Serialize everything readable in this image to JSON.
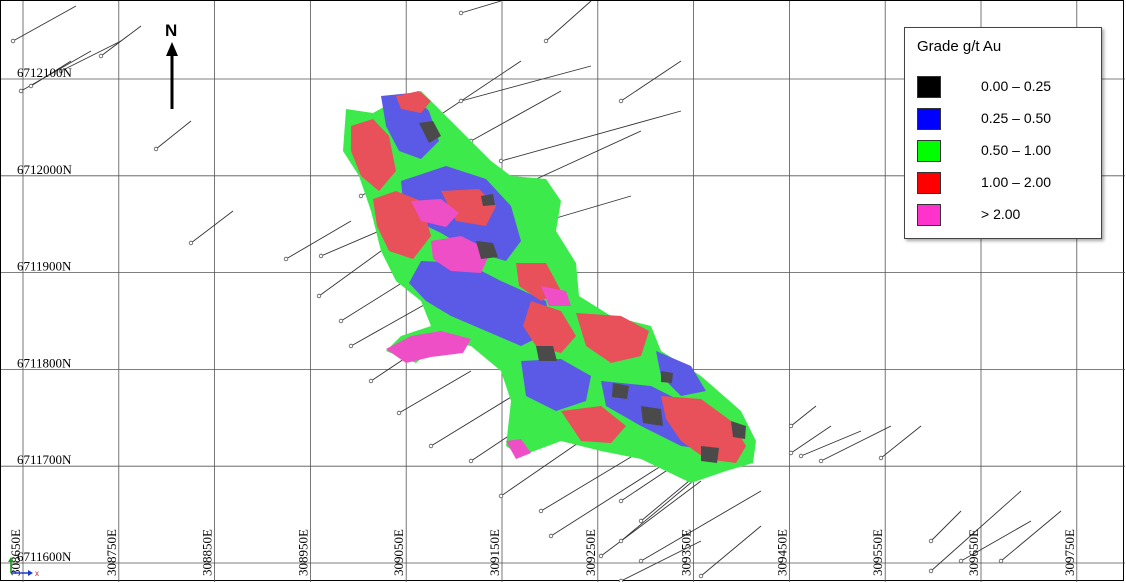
{
  "map": {
    "north_label": "N",
    "northing_labels": [
      "6712100N",
      "6712000N",
      "6711900N",
      "6711800N",
      "6711700N",
      "6711600N"
    ],
    "easting_labels": [
      "308650E",
      "308750E",
      "308850E",
      "308950E",
      "309050E",
      "309150E",
      "309250E",
      "309350E",
      "309450E",
      "309550E",
      "309650E",
      "309750E"
    ]
  },
  "legend": {
    "title": "Grade g/t Au",
    "items": [
      {
        "label": "0.00 – 0.25",
        "color": "#000000"
      },
      {
        "label": "0.25 – 0.50",
        "color": "#0000ff"
      },
      {
        "label": "0.50 – 1.00",
        "color": "#00ff00"
      },
      {
        "label": "1.00 – 2.00",
        "color": "#ff0000"
      },
      {
        "label": "> 2.00",
        "color": "#ff33cc"
      }
    ]
  },
  "colors": {
    "green": "#3dea4c",
    "blue": "#5a5ae6",
    "red": "#e8505a",
    "pink": "#ee4fc6",
    "dark": "#4a4a4a"
  }
}
